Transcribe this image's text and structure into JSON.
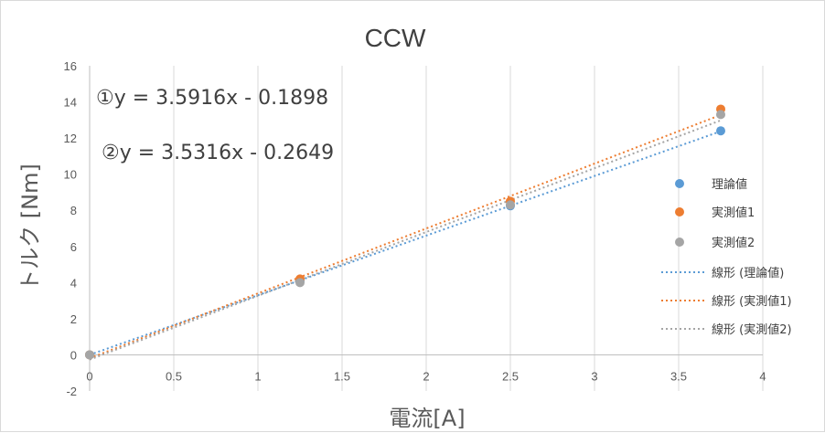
{
  "chart_data": {
    "type": "scatter",
    "title": "CCW",
    "xlabel": "電流[A]",
    "ylabel": "トルク [Nm]",
    "xlim": [
      0,
      4
    ],
    "ylim": [
      -2,
      16
    ],
    "xticks": [
      0,
      0.5,
      1,
      1.5,
      2,
      2.5,
      3,
      3.5,
      4
    ],
    "xtick_labels": [
      "0",
      "0.5",
      "1",
      "1.5",
      "2",
      "2.5",
      "3",
      "3.5",
      "4"
    ],
    "yticks": [
      -2,
      0,
      2,
      4,
      6,
      8,
      10,
      12,
      14,
      16
    ],
    "ytick_labels": [
      "-2",
      "0",
      "2",
      "4",
      "6",
      "8",
      "10",
      "12",
      "14",
      "16"
    ],
    "grid": "vertical",
    "legend_position": "right",
    "series": [
      {
        "name": "理論値",
        "color": "#5b9bd5",
        "points": [
          {
            "x": 0,
            "y": 0
          },
          {
            "x": 1.25,
            "y": 4.1
          },
          {
            "x": 2.5,
            "y": 8.25
          },
          {
            "x": 3.75,
            "y": 12.4
          }
        ]
      },
      {
        "name": "実測値1",
        "color": "#ed7d31",
        "points": [
          {
            "x": 0,
            "y": 0
          },
          {
            "x": 1.25,
            "y": 4.2
          },
          {
            "x": 2.5,
            "y": 8.5
          },
          {
            "x": 3.75,
            "y": 13.6
          }
        ]
      },
      {
        "name": "実測値2",
        "color": "#a5a5a5",
        "points": [
          {
            "x": 0,
            "y": 0
          },
          {
            "x": 1.25,
            "y": 4.0
          },
          {
            "x": 2.5,
            "y": 8.3
          },
          {
            "x": 3.75,
            "y": 13.3
          }
        ]
      }
    ],
    "trendlines": [
      {
        "name": "線形 (理論値)",
        "color": "#5b9bd5",
        "slope": 3.3,
        "intercept": 0.0
      },
      {
        "name": "線形 (実測値1)",
        "color": "#ed7d31",
        "slope": 3.5916,
        "intercept": -0.1898
      },
      {
        "name": "線形 (実測値2)",
        "color": "#a5a5a5",
        "slope": 3.5316,
        "intercept": -0.2649
      }
    ],
    "annotations": [
      {
        "text": "①y = 3.5916x - 0.1898"
      },
      {
        "text": "②y = 3.5316x - 0.2649"
      }
    ]
  }
}
